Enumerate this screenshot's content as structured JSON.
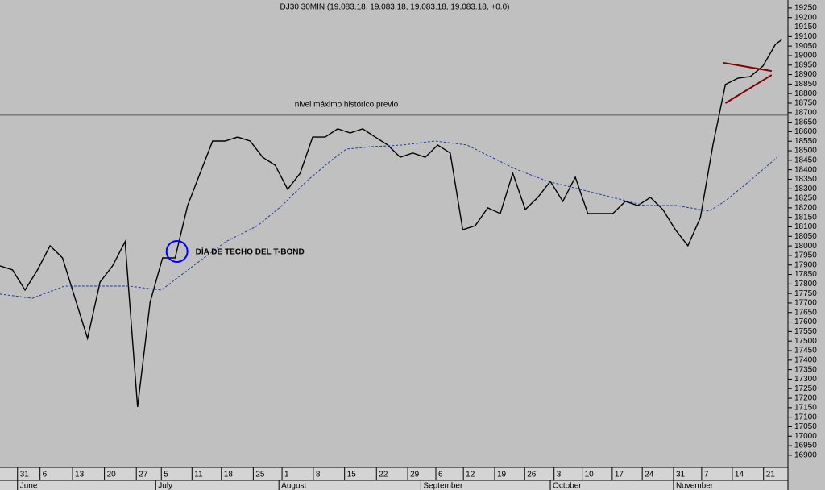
{
  "chart_data": {
    "type": "line",
    "title": "DJ30 30MIN (19,083.18, 19,083.18, 19,083.18, 19,083.18, +0.0)",
    "xlim": [
      0,
      126
    ],
    "ylim": [
      16836,
      19292
    ],
    "grid": false,
    "yticks": [
      16900,
      16950,
      17000,
      17050,
      17100,
      17150,
      17200,
      17250,
      17300,
      17350,
      17400,
      17450,
      17500,
      17550,
      17600,
      17650,
      17700,
      17750,
      17800,
      17850,
      17900,
      17950,
      18000,
      18050,
      18100,
      18150,
      18200,
      18250,
      18300,
      18350,
      18400,
      18450,
      18500,
      18550,
      18600,
      18650,
      18700,
      18750,
      18800,
      18850,
      18900,
      18950,
      19000,
      19050,
      19100,
      19150,
      19200,
      19250
    ],
    "xticks": [
      {
        "value": 2.8,
        "label": "31"
      },
      {
        "value": 6.4,
        "label": "6"
      },
      {
        "value": 11.6,
        "label": "13"
      },
      {
        "value": 16.7,
        "label": "20"
      },
      {
        "value": 21.8,
        "label": "27"
      },
      {
        "value": 25.8,
        "label": "5"
      },
      {
        "value": 30.7,
        "label": "11"
      },
      {
        "value": 35.4,
        "label": "18"
      },
      {
        "value": 40.5,
        "label": "25"
      },
      {
        "value": 45.1,
        "label": "1"
      },
      {
        "value": 50.1,
        "label": "8"
      },
      {
        "value": 55.1,
        "label": "15"
      },
      {
        "value": 60.2,
        "label": "22"
      },
      {
        "value": 65.2,
        "label": "29"
      },
      {
        "value": 69.7,
        "label": "6"
      },
      {
        "value": 74.1,
        "label": "12"
      },
      {
        "value": 79.1,
        "label": "19"
      },
      {
        "value": 83.9,
        "label": "26"
      },
      {
        "value": 88.6,
        "label": "3"
      },
      {
        "value": 93.1,
        "label": "10"
      },
      {
        "value": 97.9,
        "label": "17"
      },
      {
        "value": 102.7,
        "label": "24"
      },
      {
        "value": 107.7,
        "label": "31"
      },
      {
        "value": 112.2,
        "label": "7"
      },
      {
        "value": 117.1,
        "label": "14"
      },
      {
        "value": 122.1,
        "label": "21"
      }
    ],
    "month_ticks": [
      {
        "value": 2.8,
        "label": "June"
      },
      {
        "value": 24.9,
        "label": "July"
      },
      {
        "value": 44.6,
        "label": "August"
      },
      {
        "value": 67.3,
        "label": "September"
      },
      {
        "value": 88,
        "label": "October"
      },
      {
        "value": 107.7,
        "label": "November"
      }
    ],
    "series": [
      {
        "color": "#000000",
        "x": [
          0,
          2,
          4,
          6,
          8,
          10,
          12,
          14,
          16,
          18,
          20,
          22,
          24,
          26,
          28,
          30,
          32,
          34,
          36,
          38,
          40,
          42,
          44,
          46,
          48,
          50,
          52,
          54,
          56,
          58,
          60,
          62,
          64,
          66,
          68,
          70,
          72,
          74,
          76,
          78,
          80,
          82,
          84,
          86,
          88,
          90,
          92,
          94,
          96,
          98,
          100,
          102,
          104,
          106,
          108,
          110,
          112,
          114,
          116,
          118,
          120,
          122,
          124,
          125
        ],
        "values": [
          17895,
          17874,
          17768,
          17874,
          18001,
          17937,
          17725,
          17514,
          17810,
          17895,
          18022,
          17154,
          17704,
          17937,
          17937,
          18212,
          18382,
          18551,
          18551,
          18572,
          18551,
          18466,
          18424,
          18297,
          18382,
          18572,
          18572,
          18615,
          18593,
          18615,
          18572,
          18530,
          18466,
          18488,
          18466,
          18530,
          18488,
          18085,
          18106,
          18200,
          18170,
          18382,
          18191,
          18255,
          18339,
          18234,
          18361,
          18170,
          18170,
          18170,
          18234,
          18212,
          18255,
          18191,
          18085,
          18001,
          18149,
          18530,
          18848,
          18881,
          18890,
          18945,
          19059,
          19083
        ]
      },
      {
        "color": "#1f3fa0",
        "dashed": true,
        "x": [
          0,
          5.2,
          10.3,
          15.5,
          20.6,
          25.8,
          30.9,
          36.1,
          41.2,
          45.1,
          49,
          52.8,
          55.4,
          59.3,
          64.4,
          69.6,
          74.7,
          78.6,
          82.5,
          87.6,
          92.8,
          97.9,
          103.1,
          108.2,
          113.4,
          115.9,
          119.8,
          124.3
        ],
        "values": [
          17747,
          17725,
          17789,
          17789,
          17789,
          17768,
          17895,
          18022,
          18106,
          18212,
          18339,
          18445,
          18509,
          18521,
          18530,
          18551,
          18530,
          18466,
          18403,
          18339,
          18297,
          18255,
          18212,
          18212,
          18183,
          18234,
          18339,
          18466
        ]
      }
    ],
    "hline": {
      "value": 18687,
      "label": "nivel máximo histórico previo"
    },
    "marker": {
      "x": 28.3,
      "value": 17971,
      "label": "DÍA DE TECHO DEL T-BOND",
      "color": "#0000ff"
    },
    "trend_lines": {
      "color": "#800000",
      "lines": [
        {
          "x": [
            115.7,
            123.4
          ],
          "values": [
            18962,
            18919
          ]
        },
        {
          "x": [
            116,
            123.4
          ],
          "values": [
            18750,
            18898
          ]
        }
      ]
    }
  }
}
